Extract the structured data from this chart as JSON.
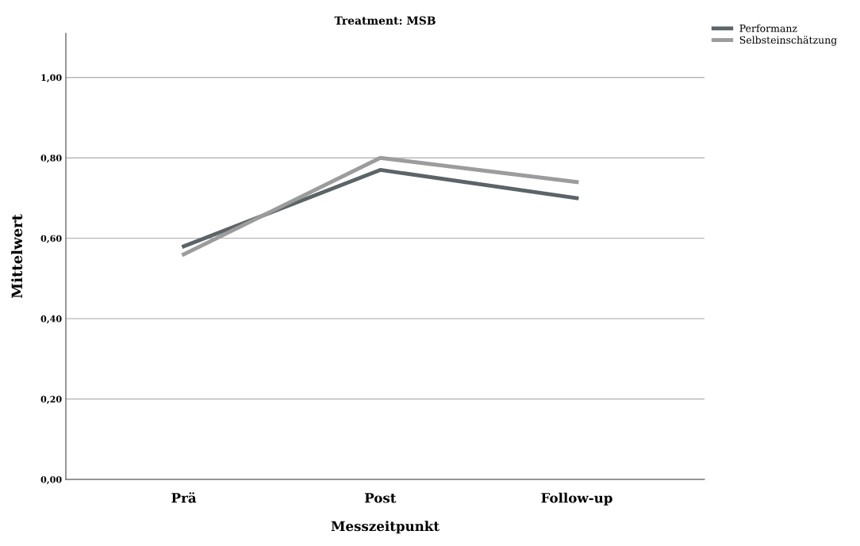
{
  "chart_data": {
    "type": "line",
    "title": "Treatment: MSB",
    "xlabel": "Messzeitpunkt",
    "ylabel": "Mittelwert",
    "categories": [
      "Prä",
      "Post",
      "Follow-up"
    ],
    "series": [
      {
        "name": "Performanz",
        "color": "#5b6466",
        "values": [
          0.58,
          0.77,
          0.7
        ]
      },
      {
        "name": "Selbsteinschätzung",
        "color": "#9c9c9c",
        "values": [
          0.56,
          0.8,
          0.74
        ]
      }
    ],
    "ylim": [
      0,
      1.11
    ],
    "yticks": [
      {
        "value": 0,
        "label": "0,00"
      },
      {
        "value": 0.2,
        "label": "0,20"
      },
      {
        "value": 0.4,
        "label": "0,40"
      },
      {
        "value": 0.6,
        "label": "0,60"
      },
      {
        "value": 0.8,
        "label": "0,80"
      },
      {
        "value": 1.0,
        "label": "1,00"
      }
    ],
    "grid": "y",
    "legend": "top right",
    "marker": "none",
    "line_style": "solid"
  }
}
